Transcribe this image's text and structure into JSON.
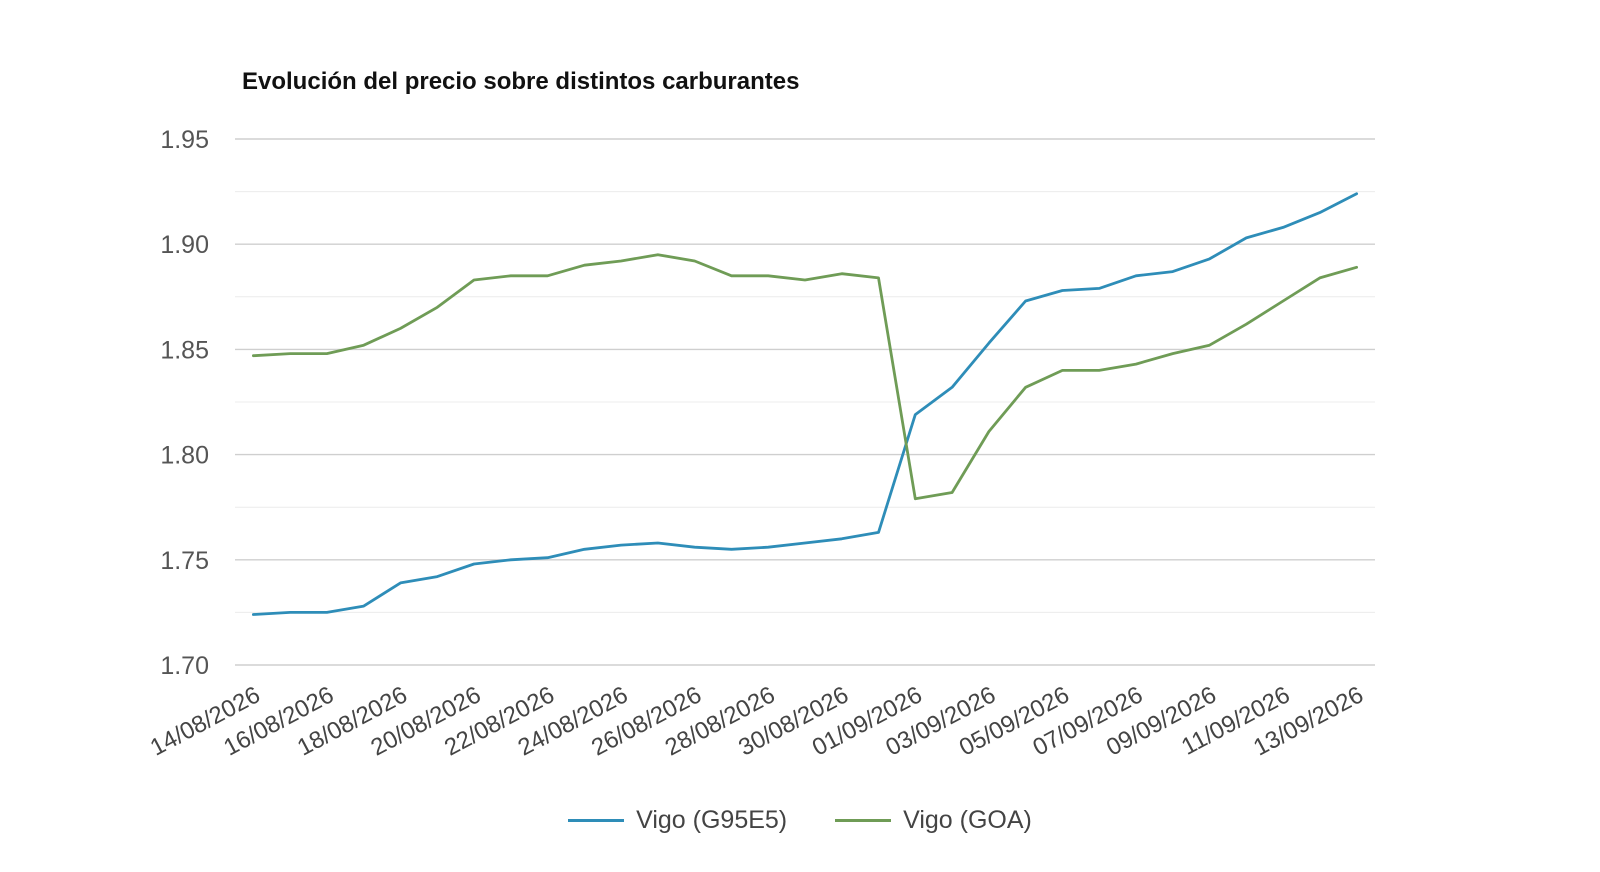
{
  "chart_data": {
    "type": "line",
    "title": "Evolución del precio sobre distintos carburantes",
    "xlabel": "",
    "ylabel": "",
    "ylim": [
      1.7,
      1.95
    ],
    "yticks": [
      "1.70",
      "1.75",
      "1.80",
      "1.85",
      "1.90",
      "1.95"
    ],
    "grid": true,
    "legend_position": "bottom",
    "x": [
      "14/08/2026",
      "15/08/2026",
      "16/08/2026",
      "17/08/2026",
      "18/08/2026",
      "19/08/2026",
      "20/08/2026",
      "21/08/2026",
      "22/08/2026",
      "23/08/2026",
      "24/08/2026",
      "25/08/2026",
      "26/08/2026",
      "27/08/2026",
      "28/08/2026",
      "29/08/2026",
      "30/08/2026",
      "31/08/2026",
      "01/09/2026",
      "02/09/2026",
      "03/09/2026",
      "04/09/2026",
      "05/09/2026",
      "06/09/2026",
      "07/09/2026",
      "08/09/2026",
      "09/09/2026",
      "10/09/2026",
      "11/09/2026",
      "12/09/2026",
      "13/09/2026"
    ],
    "xtick_labels": [
      "14/08/2026",
      "16/08/2026",
      "18/08/2026",
      "20/08/2026",
      "22/08/2026",
      "24/08/2026",
      "26/08/2026",
      "28/08/2026",
      "30/08/2026",
      "01/09/2026",
      "03/09/2026",
      "05/09/2026",
      "07/09/2026",
      "09/09/2026",
      "11/09/2026",
      "13/09/2026"
    ],
    "series": [
      {
        "name": "Vigo (G95E5)",
        "color": "#2e8db8",
        "values": [
          1.724,
          1.725,
          1.725,
          1.728,
          1.739,
          1.742,
          1.748,
          1.75,
          1.751,
          1.755,
          1.757,
          1.758,
          1.756,
          1.755,
          1.756,
          1.758,
          1.76,
          1.763,
          1.819,
          1.832,
          1.853,
          1.873,
          1.878,
          1.879,
          1.885,
          1.887,
          1.893,
          1.903,
          1.908,
          1.915,
          1.924
        ]
      },
      {
        "name": "Vigo (GOA)",
        "color": "#6f9c56",
        "values": [
          1.847,
          1.848,
          1.848,
          1.852,
          1.86,
          1.87,
          1.883,
          1.885,
          1.885,
          1.89,
          1.892,
          1.895,
          1.892,
          1.885,
          1.885,
          1.883,
          1.886,
          1.884,
          1.779,
          1.782,
          1.811,
          1.832,
          1.84,
          1.84,
          1.843,
          1.848,
          1.852,
          1.862,
          1.873,
          1.884,
          1.889
        ]
      }
    ]
  }
}
